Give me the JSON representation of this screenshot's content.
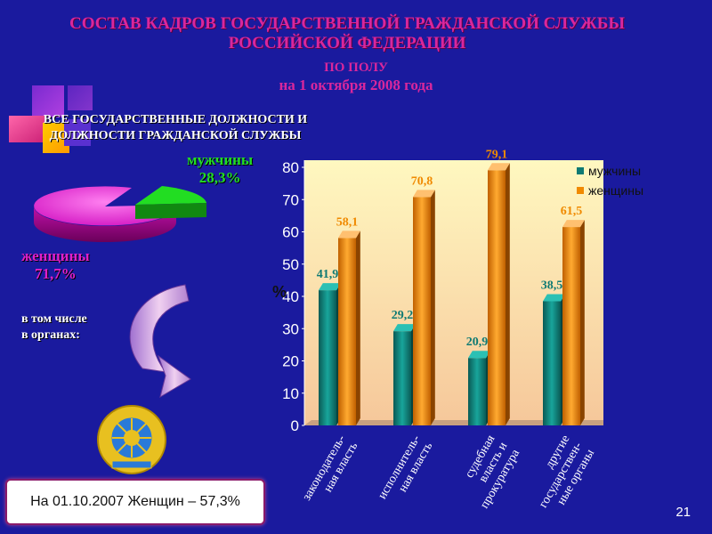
{
  "header": {
    "title_line1": "СОСТАВ КАДРОВ ГОСУДАРСТВЕННОЙ ГРАЖДАНСКОЙ СЛУЖБЫ",
    "title_line2": "РОССИЙСКОЙ ФЕДЕРАЦИИ",
    "subtitle": "ПО ПОЛУ",
    "date": "на 1 октября 2008 года"
  },
  "left": {
    "all_positions_line1": "ВСЕ  ГОСУДАРСТВЕННЫЕ ДОЛЖНОСТИ И",
    "all_positions_line2": "ДОЛЖНОСТИ ГРАЖДАНСКОЙ СЛУЖБЫ",
    "including_line1": "в том числе",
    "including_line2": "в органах:",
    "note": "На 01.10.2007 Женщин – 57,3%"
  },
  "page_number": "21",
  "colors": {
    "background": "#1a1a9e",
    "title": "#d9279c",
    "men": "#0f7a73",
    "women": "#f08a00",
    "men_pie": "#22dd22",
    "women_pie": "#e020c8",
    "plot_bg_top": "#fff8c0",
    "plot_bg_bottom": "#f6c79a"
  },
  "chart_data": [
    {
      "type": "pie",
      "categories": [
        "мужчины",
        "женщины"
      ],
      "values": [
        28.3,
        71.7
      ],
      "labels": [
        "28,3%",
        "71,7%"
      ]
    },
    {
      "type": "bar",
      "categories": [
        "законодатель-\nная власть",
        "исполнитель-\nная власть",
        "судебная\nвласть и\nпрокуратура",
        "другие\nгосударствен-\nные органы"
      ],
      "series": [
        {
          "name": "мужчины",
          "values": [
            41.9,
            29.2,
            20.9,
            38.5
          ],
          "labels": [
            "41,9",
            "29,2",
            "20,9",
            "38,5"
          ]
        },
        {
          "name": "женщины",
          "values": [
            58.1,
            70.8,
            79.1,
            61.5
          ],
          "labels": [
            "58,1",
            "70,8",
            "79,1",
            "61,5"
          ]
        }
      ],
      "ylabel": "%",
      "ylim": [
        0,
        80
      ],
      "yticks": [
        "0",
        "10",
        "20",
        "30",
        "40",
        "50",
        "60",
        "70",
        "80"
      ],
      "grid": false,
      "legend": "top-right"
    }
  ]
}
